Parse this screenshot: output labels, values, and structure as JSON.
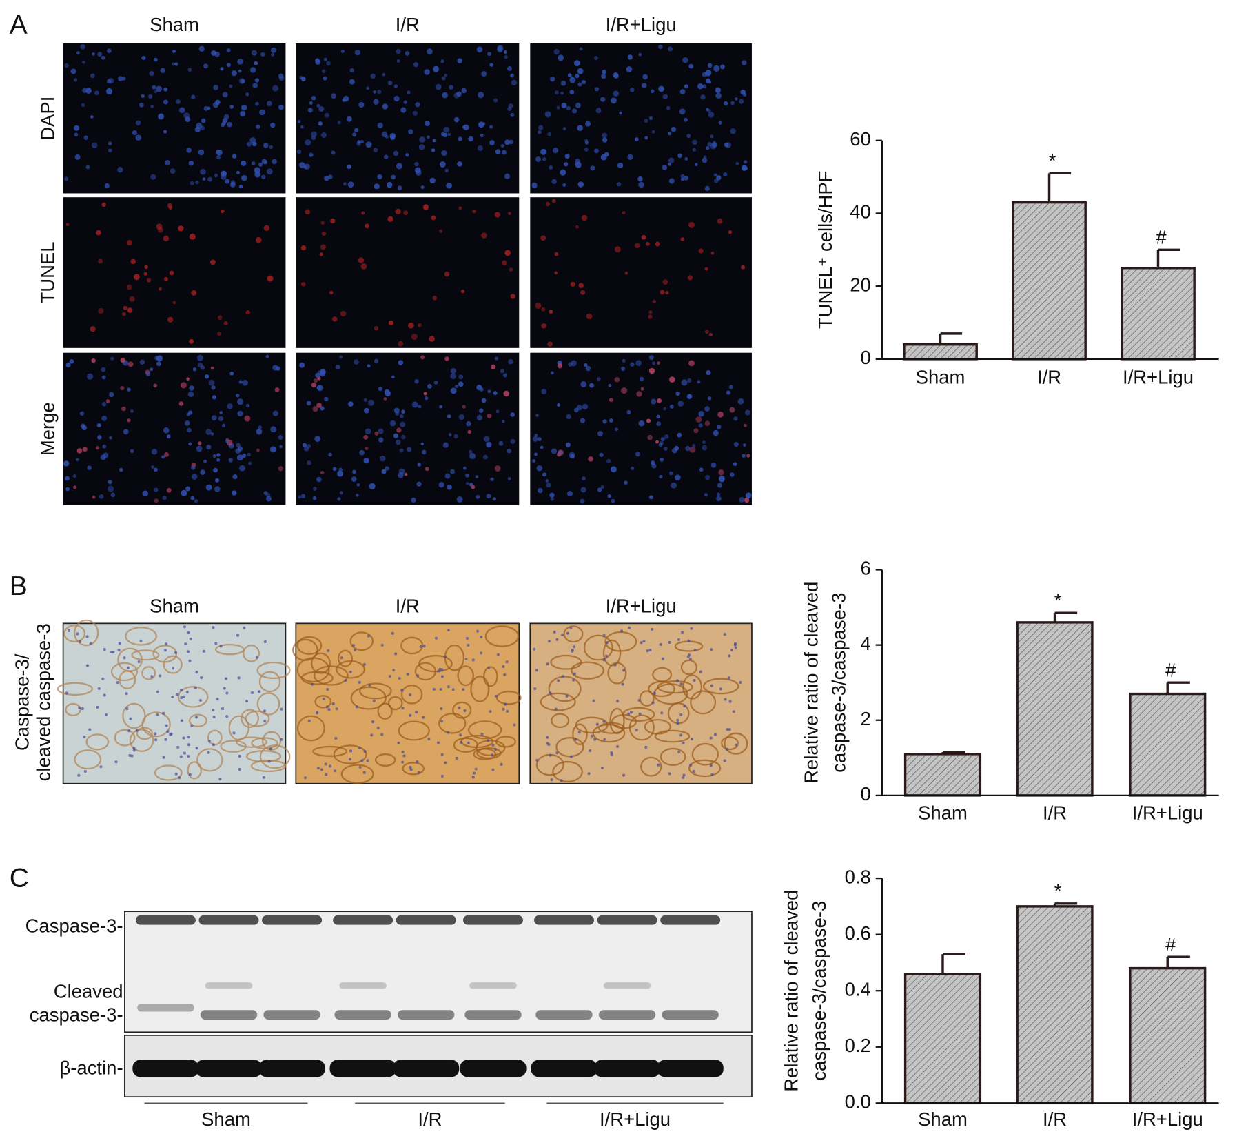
{
  "panel_a": {
    "label": "A",
    "columns": [
      "Sham",
      "I/R",
      "I/R+Ligu"
    ],
    "rows": [
      "DAPI",
      "TUNEL",
      "Merge"
    ]
  },
  "panel_b": {
    "label": "B",
    "columns": [
      "Sham",
      "I/R",
      "I/R+Ligu"
    ],
    "row_label": [
      "Caspase-3/",
      "cleaved caspase-3"
    ]
  },
  "panel_c": {
    "label": "C",
    "blot_labels": [
      "Caspase-3-",
      "Cleaved",
      "caspase-3-",
      "β-actin-"
    ],
    "groups": [
      "Sham",
      "I/R",
      "I/R+Ligu"
    ]
  },
  "chart_data": [
    {
      "type": "bar",
      "y_label": [
        "TUNEL⁺ cells/HPF"
      ],
      "categories": [
        "Sham",
        "I/R",
        "I/R+Ligu"
      ],
      "values": [
        4,
        43,
        25
      ],
      "errors": [
        3,
        8,
        5
      ],
      "annotations": [
        null,
        "*",
        "#"
      ],
      "color": "#c4c4c4",
      "ylim": [
        0,
        60
      ],
      "yticks": [
        0,
        20,
        40,
        60
      ]
    },
    {
      "type": "bar",
      "y_label": [
        "Relative ratio of cleaved",
        "caspase-3/caspase-3"
      ],
      "categories": [
        "Sham",
        "I/R",
        "I/R+Ligu"
      ],
      "values": [
        1.1,
        4.6,
        2.7
      ],
      "errors": [
        0.05,
        0.25,
        0.3
      ],
      "annotations": [
        null,
        "*",
        "#"
      ],
      "color": "#c4c4c4",
      "ylim": [
        0,
        6
      ],
      "yticks": [
        0,
        2,
        4,
        6
      ]
    },
    {
      "type": "bar",
      "y_label": [
        "Relative ratio of cleaved",
        "caspase-3/caspase-3"
      ],
      "categories": [
        "Sham",
        "I/R",
        "I/R+Ligu"
      ],
      "values": [
        0.46,
        0.7,
        0.48
      ],
      "errors": [
        0.07,
        0.01,
        0.04
      ],
      "annotations": [
        null,
        "*",
        "#"
      ],
      "color": "#c4c4c4",
      "ylim": [
        0,
        0.8
      ],
      "yticks": [
        {
          "value": 0,
          "label": "0.0"
        },
        0.2,
        0.4,
        0.6,
        0.8
      ]
    }
  ]
}
